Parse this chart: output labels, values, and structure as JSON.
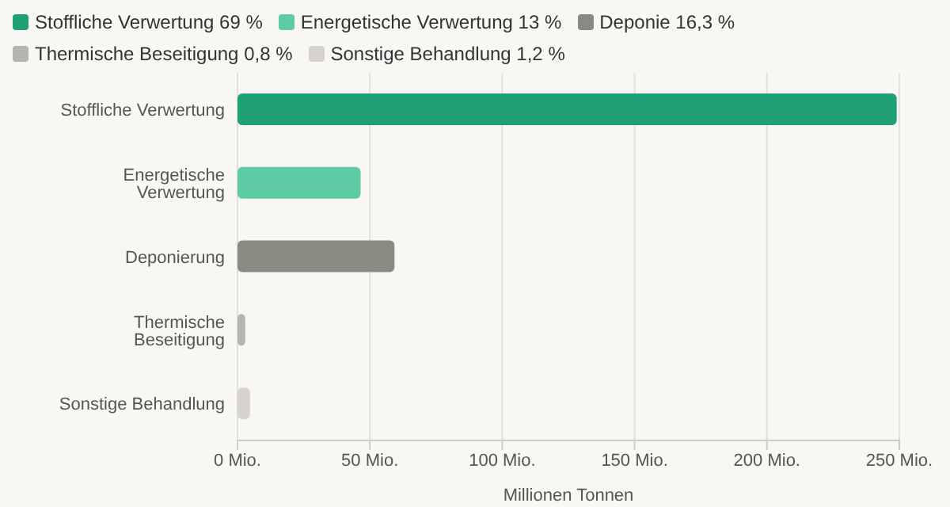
{
  "chart_data": {
    "type": "bar",
    "orientation": "horizontal",
    "stacked": true,
    "categories": [
      "Stoffliche Verwertung",
      "Energetische Verwertung",
      "Deponierung",
      "Thermische Beseitigung",
      "Sonstige Behandlung"
    ],
    "series": [
      {
        "name": "Stoffliche Verwertung 69 %",
        "color": "#1fa077",
        "values": [
          249,
          null,
          null,
          null,
          null
        ]
      },
      {
        "name": "Energetische Verwertung 13 %",
        "color": "#5ecba5",
        "values": [
          null,
          46.5,
          null,
          null,
          null
        ]
      },
      {
        "name": "Deponie 16,3 %",
        "color": "#8a8a82",
        "values": [
          null,
          null,
          59.3,
          null,
          null
        ]
      },
      {
        "name": "Thermische Beseitigung 0,8 %",
        "color": "#b5b4ae",
        "values": [
          null,
          null,
          null,
          2.9,
          null
        ]
      },
      {
        "name": "Sonstige Behandlung 1,2 %",
        "color": "#d6d3cc",
        "values": [
          null,
          null,
          null,
          null,
          4.7
        ]
      }
    ],
    "xlim": [
      0,
      250
    ],
    "xticks": [
      {
        "value": 0,
        "label": "0 Mio."
      },
      {
        "value": 50,
        "label": "50 Mio."
      },
      {
        "value": 100,
        "label": "100 Mio."
      },
      {
        "value": 150,
        "label": "150 Mio."
      },
      {
        "value": 200,
        "label": "200 Mio."
      },
      {
        "value": 250,
        "label": "250 Mio."
      }
    ],
    "xlabel": "Millionen Tonnen",
    "grid": "x",
    "legend": "top"
  }
}
